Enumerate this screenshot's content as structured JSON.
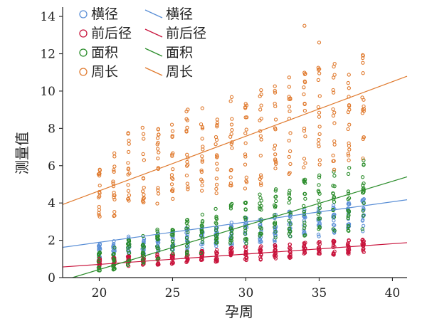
{
  "chart_data": {
    "type": "scatter",
    "xlabel": "孕周",
    "ylabel": "测量值",
    "xlim": [
      17.5,
      41
    ],
    "ylim": [
      0,
      14.5
    ],
    "xticks": [
      20,
      25,
      30,
      35,
      40
    ],
    "yticks": [
      0,
      2,
      4,
      6,
      8,
      10,
      12,
      14
    ],
    "x_weeks": [
      20,
      21,
      22,
      23,
      24,
      25,
      26,
      27,
      28,
      29,
      30,
      31,
      32,
      33,
      34,
      35,
      36,
      37,
      38
    ],
    "grid": false,
    "legend_position": "top-left",
    "series": [
      {
        "name": "横径",
        "color": "#5b8fd6",
        "marker": "circle-open",
        "center": [
          1.4,
          1.5,
          1.65,
          1.75,
          1.85,
          1.95,
          2.05,
          2.15,
          2.25,
          2.35,
          2.5,
          2.6,
          2.7,
          2.8,
          2.9,
          3.0,
          3.15,
          3.25,
          3.35
        ],
        "spread": [
          0.6,
          0.6,
          0.7,
          0.7,
          0.7,
          0.7,
          0.8,
          0.8,
          0.8,
          0.8,
          0.9,
          0.9,
          1.0,
          1.0,
          1.0,
          1.0,
          1.1,
          1.1,
          1.1
        ],
        "fit": {
          "slope": 0.1086,
          "intercept": -0.28
        }
      },
      {
        "name": "前后径",
        "color": "#c8143c",
        "marker": "circle-open",
        "center": [
          0.8,
          0.85,
          0.9,
          0.95,
          1.0,
          1.05,
          1.1,
          1.15,
          1.2,
          1.25,
          1.3,
          1.35,
          1.4,
          1.45,
          1.5,
          1.55,
          1.6,
          1.65,
          1.7
        ],
        "spread": [
          0.3,
          0.3,
          0.35,
          0.35,
          0.4,
          0.4,
          0.4,
          0.4,
          0.45,
          0.45,
          0.5,
          0.5,
          0.5,
          0.5,
          0.5,
          0.5,
          0.5,
          0.5,
          0.5
        ],
        "fit": {
          "slope": 0.0554,
          "intercept": -0.4
        }
      },
      {
        "name": "面积",
        "color": "#2a8c2a",
        "marker": "circle-open",
        "center": [
          0.9,
          1.05,
          1.25,
          1.45,
          1.7,
          1.95,
          2.15,
          2.35,
          2.6,
          2.8,
          3.0,
          3.25,
          3.4,
          3.55,
          3.75,
          3.9,
          4.1,
          4.3,
          4.45
        ],
        "spread": [
          0.7,
          0.8,
          1.0,
          1.0,
          1.1,
          1.1,
          1.2,
          1.3,
          1.4,
          1.5,
          1.6,
          1.7,
          1.8,
          1.9,
          2.0,
          2.1,
          2.2,
          2.3,
          2.4
        ],
        "fit": {
          "slope": 0.2366,
          "intercept": -4.3
        }
      },
      {
        "name": "周长",
        "color": "#e07a2e",
        "marker": "circle-open",
        "center": [
          4.5,
          5.0,
          5.8,
          6.0,
          6.2,
          6.4,
          6.7,
          6.8,
          7.0,
          7.2,
          7.4,
          7.6,
          7.8,
          8.0,
          8.3,
          8.5,
          8.7,
          8.9,
          9.0
        ],
        "spread": [
          2.0,
          2.2,
          2.5,
          2.6,
          2.8,
          2.8,
          3.0,
          3.0,
          3.1,
          3.2,
          3.3,
          3.4,
          3.4,
          3.5,
          3.6,
          3.6,
          3.7,
          3.8,
          3.8
        ],
        "outliers": [
          [
            34,
            13.5
          ],
          [
            35,
            12.6
          ]
        ],
        "fit": {
          "slope": 0.2926,
          "intercept": -1.2
        }
      }
    ]
  }
}
